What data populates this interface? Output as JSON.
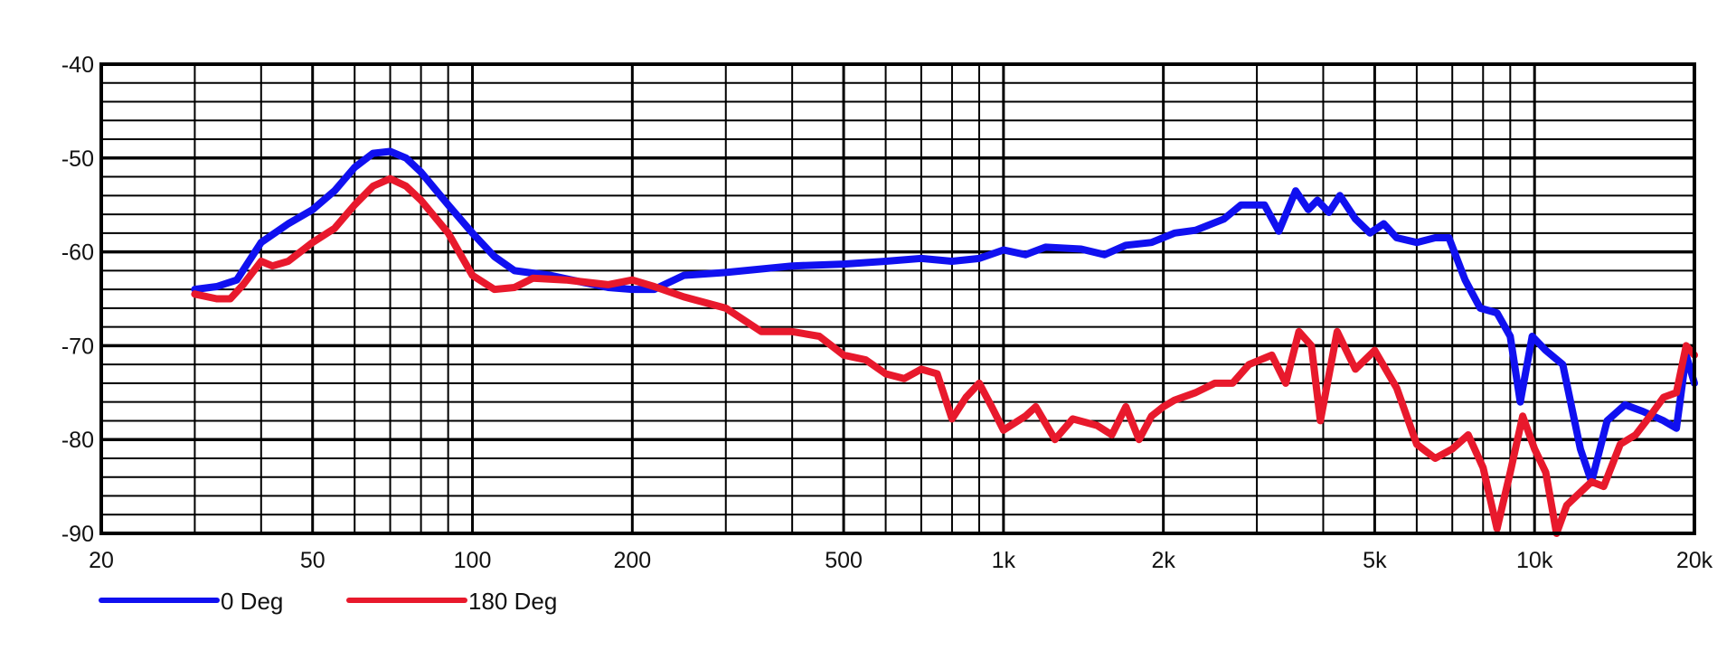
{
  "chart_data": {
    "type": "line",
    "title": "",
    "xlabel": "",
    "ylabel": "",
    "x_scale": "log",
    "xlim": [
      20,
      20000
    ],
    "ylim": [
      -90,
      -40
    ],
    "grid": true,
    "legend_position": "bottom-left",
    "x_ticks": [
      {
        "value": 20,
        "label": "20"
      },
      {
        "value": 50,
        "label": "50"
      },
      {
        "value": 100,
        "label": "100"
      },
      {
        "value": 200,
        "label": "200"
      },
      {
        "value": 500,
        "label": "500"
      },
      {
        "value": 1000,
        "label": "1k"
      },
      {
        "value": 2000,
        "label": "2k"
      },
      {
        "value": 5000,
        "label": "5k"
      },
      {
        "value": 10000,
        "label": "10k"
      },
      {
        "value": 20000,
        "label": "20k"
      }
    ],
    "y_ticks": [
      {
        "value": -40,
        "label": "-40"
      },
      {
        "value": -50,
        "label": "-50"
      },
      {
        "value": -60,
        "label": "-60"
      },
      {
        "value": -70,
        "label": "-70"
      },
      {
        "value": -80,
        "label": "-80"
      },
      {
        "value": -90,
        "label": "-90"
      }
    ],
    "series": [
      {
        "name": "0 Deg",
        "color": "#1010f0",
        "points": [
          [
            30,
            -64
          ],
          [
            33,
            -63.7
          ],
          [
            36,
            -63
          ],
          [
            40,
            -59
          ],
          [
            45,
            -57
          ],
          [
            50,
            -55.5
          ],
          [
            55,
            -53.5
          ],
          [
            60,
            -51
          ],
          [
            65,
            -49.5
          ],
          [
            70,
            -49.3
          ],
          [
            75,
            -50
          ],
          [
            80,
            -51.5
          ],
          [
            90,
            -55
          ],
          [
            100,
            -58
          ],
          [
            110,
            -60.5
          ],
          [
            120,
            -62
          ],
          [
            140,
            -62.5
          ],
          [
            160,
            -63.2
          ],
          [
            180,
            -63.8
          ],
          [
            200,
            -64
          ],
          [
            220,
            -64
          ],
          [
            250,
            -62.5
          ],
          [
            300,
            -62.2
          ],
          [
            400,
            -61.5
          ],
          [
            500,
            -61.3
          ],
          [
            600,
            -61
          ],
          [
            700,
            -60.7
          ],
          [
            800,
            -61
          ],
          [
            900,
            -60.7
          ],
          [
            1000,
            -59.8
          ],
          [
            1100,
            -60.3
          ],
          [
            1200,
            -59.5
          ],
          [
            1400,
            -59.7
          ],
          [
            1550,
            -60.3
          ],
          [
            1700,
            -59.3
          ],
          [
            1900,
            -59
          ],
          [
            2100,
            -58
          ],
          [
            2300,
            -57.7
          ],
          [
            2600,
            -56.5
          ],
          [
            2800,
            -55
          ],
          [
            3100,
            -55
          ],
          [
            3300,
            -57.8
          ],
          [
            3550,
            -53.5
          ],
          [
            3750,
            -55.5
          ],
          [
            3900,
            -54.5
          ],
          [
            4100,
            -55.8
          ],
          [
            4300,
            -54
          ],
          [
            4600,
            -56.5
          ],
          [
            4900,
            -58
          ],
          [
            5200,
            -57
          ],
          [
            5500,
            -58.5
          ],
          [
            6000,
            -59
          ],
          [
            6500,
            -58.5
          ],
          [
            6900,
            -58.5
          ],
          [
            7400,
            -63
          ],
          [
            7900,
            -66
          ],
          [
            8500,
            -66.5
          ],
          [
            9000,
            -69
          ],
          [
            9400,
            -76
          ],
          [
            9900,
            -69
          ],
          [
            10500,
            -70.5
          ],
          [
            11300,
            -72
          ],
          [
            12200,
            -81
          ],
          [
            12800,
            -84.5
          ],
          [
            13700,
            -78
          ],
          [
            14800,
            -76.3
          ],
          [
            16000,
            -77
          ],
          [
            17500,
            -78
          ],
          [
            18500,
            -78.8
          ],
          [
            19300,
            -71
          ],
          [
            20000,
            -74
          ]
        ]
      },
      {
        "name": "180 Deg",
        "color": "#e8192c",
        "points": [
          [
            30,
            -64.5
          ],
          [
            33,
            -65
          ],
          [
            35,
            -65
          ],
          [
            37,
            -63.5
          ],
          [
            40,
            -61
          ],
          [
            42,
            -61.5
          ],
          [
            45,
            -61
          ],
          [
            50,
            -59
          ],
          [
            55,
            -57.5
          ],
          [
            60,
            -55
          ],
          [
            65,
            -53
          ],
          [
            70,
            -52.2
          ],
          [
            75,
            -53
          ],
          [
            80,
            -54.5
          ],
          [
            90,
            -58
          ],
          [
            100,
            -62.5
          ],
          [
            110,
            -64
          ],
          [
            120,
            -63.8
          ],
          [
            130,
            -62.8
          ],
          [
            150,
            -63
          ],
          [
            180,
            -63.5
          ],
          [
            200,
            -63
          ],
          [
            220,
            -63.7
          ],
          [
            250,
            -64.8
          ],
          [
            300,
            -66
          ],
          [
            350,
            -68.5
          ],
          [
            400,
            -68.5
          ],
          [
            450,
            -69
          ],
          [
            500,
            -71
          ],
          [
            550,
            -71.5
          ],
          [
            600,
            -73
          ],
          [
            650,
            -73.5
          ],
          [
            700,
            -72.5
          ],
          [
            750,
            -73
          ],
          [
            800,
            -77.8
          ],
          [
            850,
            -75.5
          ],
          [
            900,
            -74
          ],
          [
            950,
            -76.5
          ],
          [
            1000,
            -79
          ],
          [
            1100,
            -77.5
          ],
          [
            1150,
            -76.5
          ],
          [
            1250,
            -80
          ],
          [
            1350,
            -77.8
          ],
          [
            1500,
            -78.5
          ],
          [
            1600,
            -79.5
          ],
          [
            1700,
            -76.5
          ],
          [
            1800,
            -80
          ],
          [
            1900,
            -77.5
          ],
          [
            2000,
            -76.5
          ],
          [
            2100,
            -75.8
          ],
          [
            2300,
            -75
          ],
          [
            2500,
            -74
          ],
          [
            2700,
            -74
          ],
          [
            2900,
            -72
          ],
          [
            3200,
            -71
          ],
          [
            3400,
            -74
          ],
          [
            3600,
            -68.5
          ],
          [
            3800,
            -70
          ],
          [
            3950,
            -78
          ],
          [
            4250,
            -68.5
          ],
          [
            4600,
            -72.5
          ],
          [
            5000,
            -70.5
          ],
          [
            5500,
            -74.5
          ],
          [
            6000,
            -80.5
          ],
          [
            6500,
            -82
          ],
          [
            7000,
            -81
          ],
          [
            7500,
            -79.5
          ],
          [
            8000,
            -83
          ],
          [
            8500,
            -89.5
          ],
          [
            9000,
            -83.5
          ],
          [
            9500,
            -77.5
          ],
          [
            10000,
            -81
          ],
          [
            10500,
            -83.5
          ],
          [
            11000,
            -90
          ],
          [
            11500,
            -87
          ],
          [
            12000,
            -86
          ],
          [
            12800,
            -84.5
          ],
          [
            13500,
            -85
          ],
          [
            14500,
            -80.5
          ],
          [
            15500,
            -79.5
          ],
          [
            16500,
            -77.5
          ],
          [
            17500,
            -75.5
          ],
          [
            18500,
            -75
          ],
          [
            19300,
            -70
          ],
          [
            20000,
            -71
          ]
        ]
      }
    ]
  }
}
